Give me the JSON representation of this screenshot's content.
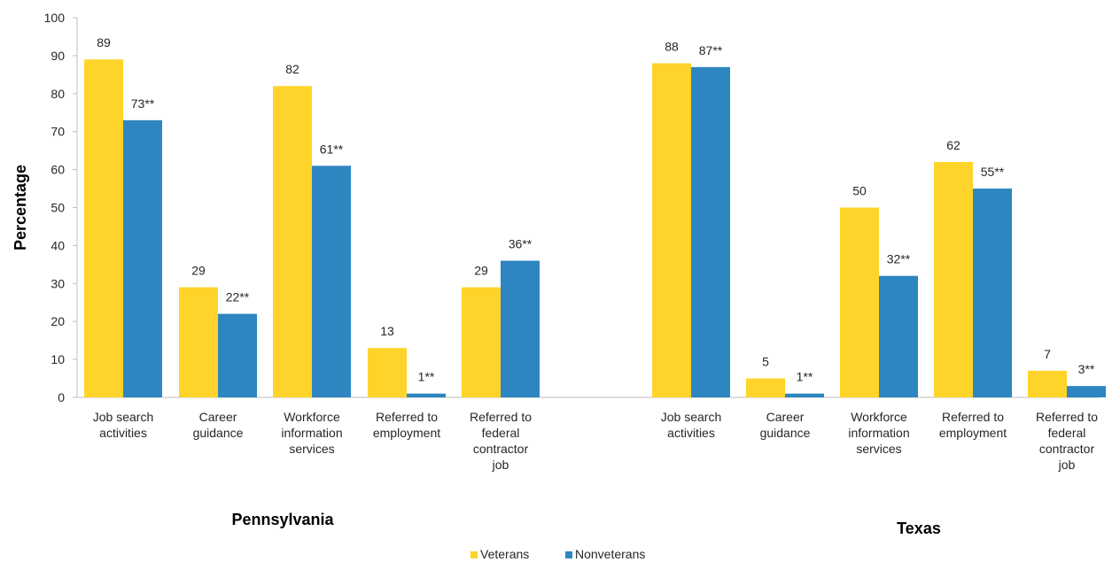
{
  "chart_data": {
    "type": "bar",
    "ylabel": "Percentage",
    "ylim": [
      0,
      100
    ],
    "yticks": [
      0,
      10,
      20,
      30,
      40,
      50,
      60,
      70,
      80,
      90,
      100
    ],
    "grid": false,
    "legend_position": "bottom-center",
    "series": [
      {
        "name": "Veterans",
        "color": "#FFD42A"
      },
      {
        "name": "Nonveterans",
        "color": "#2E86C1"
      }
    ],
    "groups": [
      {
        "name": "Pennsylvania",
        "categories": [
          [
            "Job search",
            "activities"
          ],
          [
            "Career",
            "guidance"
          ],
          [
            "Workforce",
            "information",
            "services"
          ],
          [
            "Referred to",
            "employment"
          ],
          [
            "Referred to",
            "federal",
            "contractor",
            "job"
          ]
        ],
        "veterans": [
          89,
          29,
          82,
          13,
          29
        ],
        "nonveterans": [
          73,
          22,
          61,
          1,
          36
        ],
        "veterans_labels": [
          "89",
          "29",
          "82",
          "13",
          "29"
        ],
        "nonveterans_labels": [
          "73**",
          "22**",
          "61**",
          "1**",
          "36**"
        ]
      },
      {
        "name": "Texas",
        "categories": [
          [
            "Job search",
            "activities"
          ],
          [
            "Career",
            "guidance"
          ],
          [
            "Workforce",
            "information",
            "services"
          ],
          [
            "Referred to",
            "employment"
          ],
          [
            "Referred to",
            "federal",
            "contractor",
            "job"
          ]
        ],
        "veterans": [
          88,
          5,
          50,
          62,
          7
        ],
        "nonveterans": [
          87,
          1,
          32,
          55,
          3
        ],
        "veterans_labels": [
          "88",
          "5",
          "50",
          "62",
          "7"
        ],
        "nonveterans_labels": [
          "87**",
          "1**",
          "32**",
          "55**",
          "3**"
        ]
      }
    ]
  }
}
